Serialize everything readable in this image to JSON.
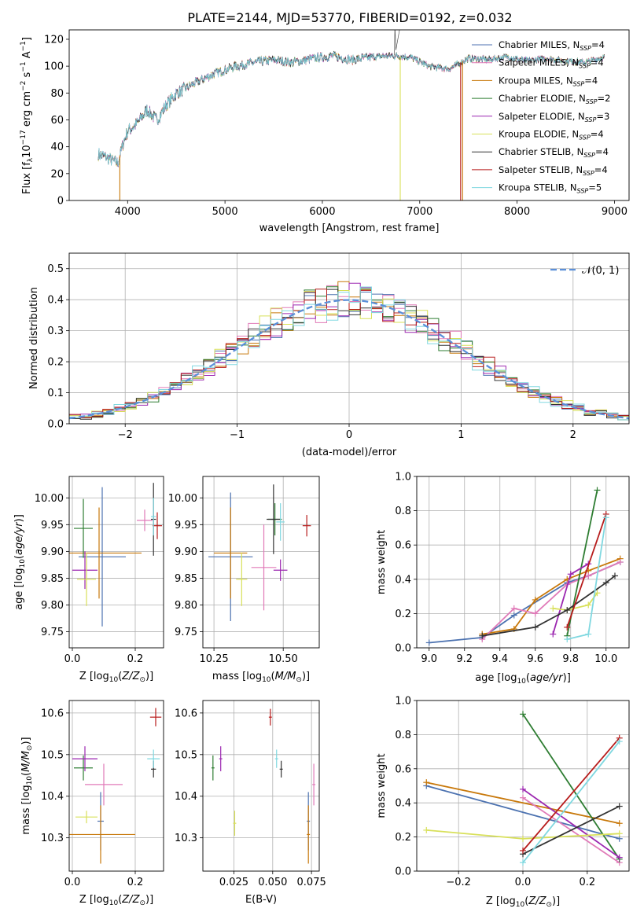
{
  "title": "PLATE=2144, MJD=53770, FIBERID=0192, z=0.032",
  "colors": {
    "Chabrier MILES": "#4c72b0",
    "Salpeter MILES": "#e07ab8",
    "Kroupa MILES": "#c8780a",
    "Chabrier ELODIE": "#2e7d32",
    "Salpeter ELODIE": "#9c27b0",
    "Kroupa ELODIE": "#d8e05a",
    "Chabrier STELIB": "#333333",
    "Salpeter STELIB": "#b71c1c",
    "Kroupa STELIB": "#80d8e0"
  },
  "chart_data": [
    {
      "id": "spectrum",
      "type": "line",
      "xlabel": "wavelength [Angstrom, rest frame]",
      "ylabel": "Flux [f_λ10^-17 erg cm^-2 s^-1 A^-1]",
      "xlim": [
        3400,
        9150
      ],
      "ylim": [
        0,
        127
      ],
      "xticks": [
        4000,
        5000,
        6000,
        7000,
        8000,
        9000
      ],
      "yticks": [
        0,
        20,
        40,
        60,
        80,
        100,
        120
      ],
      "legend": [
        {
          "name": "Chabrier MILES",
          "nssp": "4"
        },
        {
          "name": "Salpeter MILES",
          "nssp": "4"
        },
        {
          "name": "Kroupa MILES",
          "nssp": "4"
        },
        {
          "name": "Chabrier ELODIE",
          "nssp": "2"
        },
        {
          "name": "Salpeter ELODIE",
          "nssp": "3"
        },
        {
          "name": "Kroupa ELODIE",
          "nssp": "4"
        },
        {
          "name": "Chabrier STELIB",
          "nssp": "4"
        },
        {
          "name": "Salpeter STELIB",
          "nssp": "4"
        },
        {
          "name": "Kroupa STELIB",
          "nssp": "5"
        }
      ],
      "continuum": {
        "x": [
          3700,
          3800,
          3900,
          3950,
          4000,
          4100,
          4200,
          4300,
          4400,
          4500,
          4700,
          4900,
          5100,
          5300,
          5500,
          5700,
          5900,
          6100,
          6300,
          6500,
          6700,
          6900,
          7100,
          7300,
          7500,
          7700,
          7900,
          8100,
          8300,
          8500,
          8700,
          8900
        ],
        "y": [
          35,
          32,
          28,
          42,
          52,
          58,
          68,
          60,
          72,
          80,
          88,
          95,
          100,
          103,
          105,
          103,
          106,
          108,
          105,
          107,
          108,
          107,
          100,
          98,
          106,
          105,
          107,
          104,
          106,
          104,
          103,
          107
        ]
      },
      "dropouts": [
        {
          "series": "Kroupa MILES",
          "x": 3920,
          "to": 0
        },
        {
          "series": "Kroupa ELODIE",
          "x": 6800,
          "to": 0
        },
        {
          "series": "Salpeter STELIB",
          "x": 7420,
          "to": 0
        },
        {
          "series": "Kroupa MILES",
          "x": 7440,
          "to": 0
        }
      ]
    },
    {
      "id": "residuals",
      "type": "line",
      "xlabel": "(data-model)/error",
      "ylabel": "Normed distribution",
      "xlim": [
        -2.5,
        2.5
      ],
      "ylim": [
        0,
        0.55
      ],
      "xticks": [
        -2,
        -1,
        0,
        1,
        2
      ],
      "xticklabels": [
        "−2",
        "−1",
        "0",
        "1",
        "2"
      ],
      "yticks": [
        0,
        0.1,
        0.2,
        0.3,
        0.4,
        0.5
      ],
      "yticklabels": [
        "0.0",
        "0.1",
        "0.2",
        "0.3",
        "0.4",
        "0.5"
      ],
      "legend": "𝒩(0, 1)",
      "gaussian": {
        "mean": 0,
        "sigma": 1,
        "color": "#5b8fd9"
      },
      "bin_width": 0.1
    },
    {
      "id": "age-vs-Z",
      "type": "scatter",
      "xlabel": "Z [log10(Z/Z⊙)]",
      "ylabel": "age  [log10(age/yr)]",
      "xlim": [
        -0.01,
        0.29
      ],
      "ylim": [
        9.72,
        10.04
      ],
      "xticks": [
        0.0,
        0.2
      ],
      "xticklabels": [
        "0.0",
        "0.2"
      ],
      "yticks": [
        9.75,
        9.8,
        9.85,
        9.9,
        9.95,
        10.0
      ],
      "yticklabels": [
        "9.75",
        "9.80",
        "9.85",
        "9.90",
        "9.95",
        "10.00"
      ],
      "points": [
        {
          "series": "Chabrier MILES",
          "x": 0.095,
          "y": 9.89,
          "xerr": 0.075,
          "yerr": 0.13
        },
        {
          "series": "Salpeter MILES",
          "x": 0.23,
          "y": 9.958,
          "xerr": 0.025,
          "yerr": 0.02
        },
        {
          "series": "Kroupa MILES",
          "x": 0.085,
          "y": 9.897,
          "xerr": 0.135,
          "yerr": 0.085
        },
        {
          "series": "Chabrier ELODIE",
          "x": 0.035,
          "y": 9.943,
          "xerr": 0.03,
          "yerr": 0.055
        },
        {
          "series": "Salpeter ELODIE",
          "x": 0.04,
          "y": 9.865,
          "xerr": 0.04,
          "yerr": 0.035
        },
        {
          "series": "Kroupa ELODIE",
          "x": 0.045,
          "y": 9.848,
          "xerr": 0.03,
          "yerr": 0.05
        },
        {
          "series": "Chabrier STELIB",
          "x": 0.258,
          "y": 9.96,
          "xerr": 0.008,
          "yerr": 0.068
        },
        {
          "series": "Salpeter STELIB",
          "x": 0.27,
          "y": 9.948,
          "xerr": 0.015,
          "yerr": 0.025
        },
        {
          "series": "Kroupa STELIB",
          "x": 0.258,
          "y": 9.965,
          "xerr": 0.008,
          "yerr": 0.035
        }
      ]
    },
    {
      "id": "age-vs-mass",
      "type": "scatter",
      "xlabel": "mass [log10(M/M⊙)]",
      "ylabel": "",
      "xlim": [
        10.21,
        10.63
      ],
      "ylim": [
        9.72,
        10.04
      ],
      "xticks": [
        10.25,
        10.5
      ],
      "xticklabels": [
        "10.25",
        "10.50"
      ],
      "yticks": [
        9.75,
        9.8,
        9.85,
        9.9,
        9.95,
        10.0
      ],
      "yticklabels": [
        "9.75",
        "9.80",
        "9.85",
        "9.90",
        "9.95",
        "10.00"
      ],
      "points": [
        {
          "series": "Chabrier MILES",
          "x": 10.31,
          "y": 9.89,
          "xerr": 0.08,
          "yerr": 0.12
        },
        {
          "series": "Salpeter MILES",
          "x": 10.43,
          "y": 9.87,
          "xerr": 0.045,
          "yerr": 0.08
        },
        {
          "series": "Kroupa MILES",
          "x": 10.31,
          "y": 9.897,
          "xerr": 0.06,
          "yerr": 0.085
        },
        {
          "series": "Chabrier ELODIE",
          "x": 10.47,
          "y": 9.96,
          "xerr": 0.025,
          "yerr": 0.03
        },
        {
          "series": "Salpeter ELODIE",
          "x": 10.49,
          "y": 9.865,
          "xerr": 0.025,
          "yerr": 0.02
        },
        {
          "series": "Kroupa ELODIE",
          "x": 10.35,
          "y": 9.848,
          "xerr": 0.02,
          "yerr": 0.05
        },
        {
          "series": "Chabrier STELIB",
          "x": 10.465,
          "y": 9.96,
          "xerr": 0.025,
          "yerr": 0.065
        },
        {
          "series": "Salpeter STELIB",
          "x": 10.585,
          "y": 9.948,
          "xerr": 0.015,
          "yerr": 0.02
        },
        {
          "series": "Kroupa STELIB",
          "x": 10.49,
          "y": 9.955,
          "xerr": 0.015,
          "yerr": 0.035
        }
      ]
    },
    {
      "id": "mass-weight-vs-age",
      "type": "line",
      "xlabel": "age  [log10(age/yr)]",
      "ylabel": "mass weight",
      "xlim": [
        8.93,
        10.13
      ],
      "ylim": [
        0,
        1
      ],
      "xticks": [
        9.0,
        9.2,
        9.4,
        9.6,
        9.8,
        10.0
      ],
      "xticklabels": [
        "9.0",
        "9.2",
        "9.4",
        "9.6",
        "9.8",
        "10.0"
      ],
      "yticks": [
        0,
        0.2,
        0.4,
        0.6,
        0.8,
        1.0
      ],
      "yticklabels": [
        "0.0",
        "0.2",
        "0.4",
        "0.6",
        "0.8",
        "1.0"
      ],
      "series": [
        {
          "name": "Chabrier MILES",
          "x": [
            9.0,
            9.3,
            9.48,
            9.78,
            9.9,
            10.08
          ],
          "y": [
            0.03,
            0.06,
            0.19,
            0.38,
            0.42,
            0.5
          ]
        },
        {
          "name": "Kroupa MILES",
          "x": [
            9.3,
            9.48,
            9.6,
            9.78,
            9.9,
            10.08
          ],
          "y": [
            0.08,
            0.11,
            0.28,
            0.4,
            0.45,
            0.52
          ]
        },
        {
          "name": "Salpeter MILES",
          "x": [
            9.3,
            9.48,
            9.6,
            9.78,
            9.9,
            10.08
          ],
          "y": [
            0.05,
            0.23,
            0.2,
            0.37,
            0.42,
            0.5
          ]
        },
        {
          "name": "Chabrier ELODIE",
          "x": [
            9.78,
            9.95
          ],
          "y": [
            0.07,
            0.92
          ]
        },
        {
          "name": "Salpeter ELODIE",
          "x": [
            9.7,
            9.8,
            9.9
          ],
          "y": [
            0.08,
            0.43,
            0.49
          ]
        },
        {
          "name": "Kroupa ELODIE",
          "x": [
            9.7,
            9.78,
            9.9,
            9.95
          ],
          "y": [
            0.23,
            0.22,
            0.25,
            0.32
          ]
        },
        {
          "name": "Chabrier STELIB",
          "x": [
            9.3,
            9.6,
            9.78,
            10.0,
            10.05
          ],
          "y": [
            0.07,
            0.12,
            0.22,
            0.38,
            0.42
          ]
        },
        {
          "name": "Salpeter STELIB",
          "x": [
            9.78,
            10.0
          ],
          "y": [
            0.12,
            0.78
          ]
        },
        {
          "name": "Kroupa STELIB",
          "x": [
            9.78,
            9.9,
            10.0
          ],
          "y": [
            0.05,
            0.08,
            0.76
          ]
        }
      ]
    },
    {
      "id": "mass-vs-Z",
      "type": "scatter",
      "xlabel": "Z [log10(Z/Z⊙)]",
      "ylabel": "mass [log10(M/M⊙)]",
      "xlim": [
        -0.01,
        0.29
      ],
      "ylim": [
        10.22,
        10.63
      ],
      "xticks": [
        0.0,
        0.2
      ],
      "xticklabels": [
        "0.0",
        "0.2"
      ],
      "yticks": [
        10.3,
        10.4,
        10.5,
        10.6
      ],
      "yticklabels": [
        "10.3",
        "10.4",
        "10.5",
        "10.6"
      ],
      "points": [
        {
          "series": "Chabrier MILES",
          "x": 0.09,
          "y": 10.34,
          "xerr": 0.01,
          "yerr": 0.07
        },
        {
          "series": "Salpeter MILES",
          "x": 0.1,
          "y": 10.428,
          "xerr": 0.06,
          "yerr": 0.05
        },
        {
          "series": "Kroupa MILES",
          "x": 0.09,
          "y": 10.308,
          "xerr": 0.11,
          "yerr": 0.07
        },
        {
          "series": "Chabrier ELODIE",
          "x": 0.035,
          "y": 10.468,
          "xerr": 0.03,
          "yerr": 0.03
        },
        {
          "series": "Salpeter ELODIE",
          "x": 0.04,
          "y": 10.49,
          "xerr": 0.04,
          "yerr": 0.03
        },
        {
          "series": "Kroupa ELODIE",
          "x": 0.045,
          "y": 10.35,
          "xerr": 0.035,
          "yerr": 0.015
        },
        {
          "series": "Chabrier STELIB",
          "x": 0.258,
          "y": 10.465,
          "xerr": 0.008,
          "yerr": 0.02
        },
        {
          "series": "Salpeter STELIB",
          "x": 0.265,
          "y": 10.59,
          "xerr": 0.018,
          "yerr": 0.022
        },
        {
          "series": "Kroupa STELIB",
          "x": 0.258,
          "y": 10.49,
          "xerr": 0.02,
          "yerr": 0.022
        }
      ]
    },
    {
      "id": "mass-vs-ebv",
      "type": "scatter",
      "xlabel": "E(B-V)",
      "ylabel": "",
      "xlim": [
        0.005,
        0.08
      ],
      "ylim": [
        10.22,
        10.63
      ],
      "xticks": [
        0.025,
        0.05,
        0.075
      ],
      "xticklabels": [
        "0.025",
        "0.050",
        "0.075"
      ],
      "yticks": [
        10.3,
        10.4,
        10.5,
        10.6
      ],
      "yticklabels": [
        "10.3",
        "10.4",
        "10.5",
        "10.6"
      ],
      "points": [
        {
          "series": "Chabrier MILES",
          "x": 0.073,
          "y": 10.34,
          "xerr": 0.001,
          "yerr": 0.07
        },
        {
          "series": "Salpeter MILES",
          "x": 0.0765,
          "y": 10.428,
          "xerr": 0.001,
          "yerr": 0.05
        },
        {
          "series": "Kroupa MILES",
          "x": 0.073,
          "y": 10.308,
          "xerr": 0.001,
          "yerr": 0.07
        },
        {
          "series": "Chabrier ELODIE",
          "x": 0.0115,
          "y": 10.468,
          "xerr": 0.001,
          "yerr": 0.03
        },
        {
          "series": "Salpeter ELODIE",
          "x": 0.0165,
          "y": 10.49,
          "xerr": 0.001,
          "yerr": 0.03
        },
        {
          "series": "Kroupa ELODIE",
          "x": 0.0255,
          "y": 10.335,
          "xerr": 0.001,
          "yerr": 0.03
        },
        {
          "series": "Chabrier STELIB",
          "x": 0.0555,
          "y": 10.465,
          "xerr": 0.001,
          "yerr": 0.02
        },
        {
          "series": "Salpeter STELIB",
          "x": 0.0485,
          "y": 10.59,
          "xerr": 0.001,
          "yerr": 0.02
        },
        {
          "series": "Kroupa STELIB",
          "x": 0.0525,
          "y": 10.49,
          "xerr": 0.001,
          "yerr": 0.022
        }
      ]
    },
    {
      "id": "mass-weight-vs-Z",
      "type": "line",
      "xlabel": "Z [log10(Z/Z⊙)]",
      "ylabel": "mass weight",
      "xlim": [
        -0.33,
        0.33
      ],
      "ylim": [
        0,
        1
      ],
      "xticks": [
        -0.2,
        0.0,
        0.2
      ],
      "xticklabels": [
        "−0.2",
        "0.0",
        "0.2"
      ],
      "yticks": [
        0,
        0.2,
        0.4,
        0.6,
        0.8,
        1.0
      ],
      "yticklabels": [
        "0.0",
        "0.2",
        "0.4",
        "0.6",
        "0.8",
        "1.0"
      ],
      "series": [
        {
          "name": "Chabrier MILES",
          "x": [
            -0.3,
            0.3
          ],
          "y": [
            0.5,
            0.19
          ]
        },
        {
          "name": "Kroupa MILES",
          "x": [
            -0.3,
            0.3
          ],
          "y": [
            0.52,
            0.28
          ]
        },
        {
          "name": "Salpeter MILES",
          "x": [
            0.0,
            0.3
          ],
          "y": [
            0.43,
            0.05
          ]
        },
        {
          "name": "Chabrier ELODIE",
          "x": [
            0.0,
            0.3
          ],
          "y": [
            0.92,
            0.07
          ]
        },
        {
          "name": "Salpeter ELODIE",
          "x": [
            0.0,
            0.3
          ],
          "y": [
            0.48,
            0.08
          ]
        },
        {
          "name": "Kroupa ELODIE",
          "x": [
            -0.3,
            0.0,
            0.3
          ],
          "y": [
            0.24,
            0.19,
            0.22
          ]
        },
        {
          "name": "Chabrier STELIB",
          "x": [
            0.0,
            0.3
          ],
          "y": [
            0.1,
            0.38
          ]
        },
        {
          "name": "Salpeter STELIB",
          "x": [
            0.0,
            0.3
          ],
          "y": [
            0.12,
            0.78
          ]
        },
        {
          "name": "Kroupa STELIB",
          "x": [
            0.0,
            0.3
          ],
          "y": [
            0.05,
            0.76
          ]
        }
      ]
    }
  ]
}
